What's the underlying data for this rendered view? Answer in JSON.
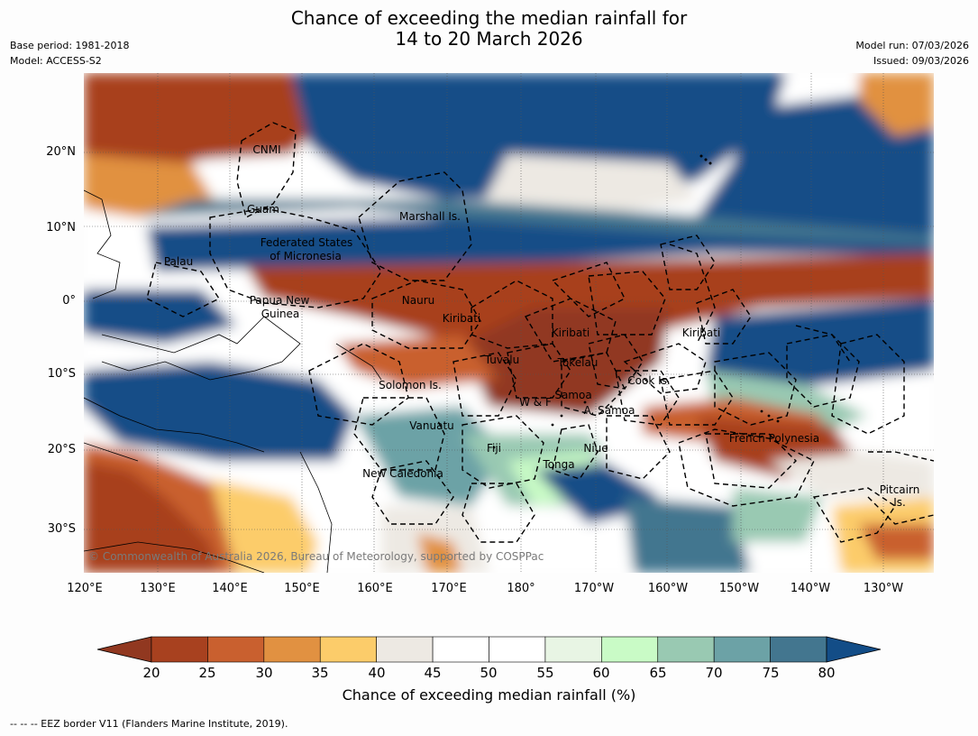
{
  "title": {
    "line1": "Chance of exceeding the median rainfall for",
    "line2": "14 to 20 March 2026"
  },
  "meta": {
    "base_period": "Base period: 1981-2018",
    "model": "Model: ACCESS-S2",
    "model_run": "Model run: 07/03/2026",
    "issued": "Issued: 09/03/2026"
  },
  "axes": {
    "lat_labels": [
      "20°N",
      "10°N",
      "0°",
      "10°S",
      "20°S",
      "30°S"
    ],
    "lon_labels": [
      "120°E",
      "130°E",
      "140°E",
      "150°E",
      "160°E",
      "170°E",
      "180°",
      "170°W",
      "160°W",
      "150°W",
      "140°W",
      "130°W"
    ]
  },
  "places": [
    "CNMI",
    "Guam",
    "Marshall Is.",
    "Federated States",
    "of Micronesia",
    "Palau",
    "Papua New",
    "Guinea",
    "Nauru",
    "Kiribati",
    "Kiribati",
    "Kiribati",
    "Tuvalu",
    "Tokelau",
    "Solomon Is.",
    "Cook Is.",
    "Samoa",
    "W & F",
    "A. Samoa",
    "Vanuatu",
    "Fiji",
    "Niue",
    "French Polynesia",
    "Tonga",
    "New Caledonia",
    "Pitcairn",
    "Is."
  ],
  "copyright": "© Commonwealth of Australia 2026, Bureau of Meteorology, supported by COSPPac",
  "colorbar": {
    "ticks": [
      "20",
      "25",
      "30",
      "35",
      "40",
      "45",
      "50",
      "55",
      "60",
      "65",
      "70",
      "75",
      "80"
    ],
    "colors": [
      "#a8411f",
      "#c9602f",
      "#e19141",
      "#fccc6a",
      "#ede9e3",
      "#ffffff",
      "#ffffff",
      "#e8f5e4",
      "#c9fbc6",
      "#99c9b2",
      "#6ca2a6",
      "#43768f"
    ],
    "under_color": "#913820",
    "over_color": "#134d87",
    "label": "Chance of exceeding median rainfall (%)"
  },
  "footnote": "--  --  -- EEZ border V11 (Flanders Marine Institute, 2019)."
}
